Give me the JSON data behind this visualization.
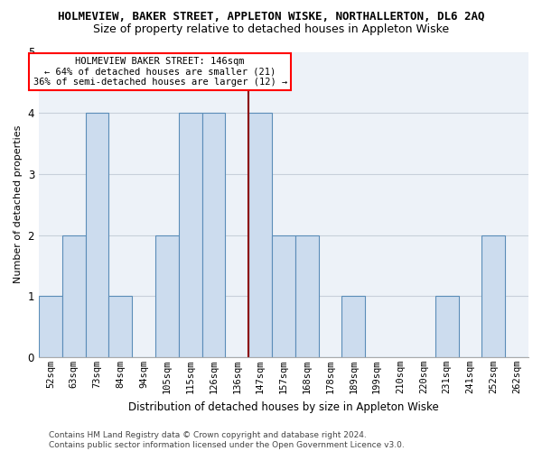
{
  "title": "HOLMEVIEW, BAKER STREET, APPLETON WISKE, NORTHALLERTON, DL6 2AQ",
  "subtitle": "Size of property relative to detached houses in Appleton Wiske",
  "xlabel": "Distribution of detached houses by size in Appleton Wiske",
  "ylabel": "Number of detached properties",
  "footer_line1": "Contains HM Land Registry data © Crown copyright and database right 2024.",
  "footer_line2": "Contains public sector information licensed under the Open Government Licence v3.0.",
  "annotation_line1": "HOLMEVIEW BAKER STREET: 146sqm",
  "annotation_line2": "← 64% of detached houses are smaller (21)",
  "annotation_line3": "36% of semi-detached houses are larger (12) →",
  "bar_color": "#ccdcee",
  "bar_edge_color": "#5b8db8",
  "ref_line_color": "#8b0000",
  "categories": [
    "52sqm",
    "63sqm",
    "73sqm",
    "84sqm",
    "94sqm",
    "105sqm",
    "115sqm",
    "126sqm",
    "136sqm",
    "147sqm",
    "157sqm",
    "168sqm",
    "178sqm",
    "189sqm",
    "199sqm",
    "210sqm",
    "220sqm",
    "231sqm",
    "241sqm",
    "252sqm",
    "262sqm"
  ],
  "values": [
    1,
    2,
    4,
    1,
    0,
    2,
    4,
    4,
    0,
    4,
    2,
    2,
    0,
    1,
    0,
    0,
    0,
    1,
    0,
    2,
    0
  ],
  "ylim": [
    0,
    5
  ],
  "yticks": [
    0,
    1,
    2,
    3,
    4,
    5
  ],
  "bg_color": "#edf2f8",
  "grid_color": "#c8d0da",
  "title_fontsize": 9,
  "subtitle_fontsize": 9,
  "annot_fontsize": 7.5,
  "ylabel_fontsize": 8,
  "xlabel_fontsize": 8.5,
  "footer_fontsize": 6.5
}
